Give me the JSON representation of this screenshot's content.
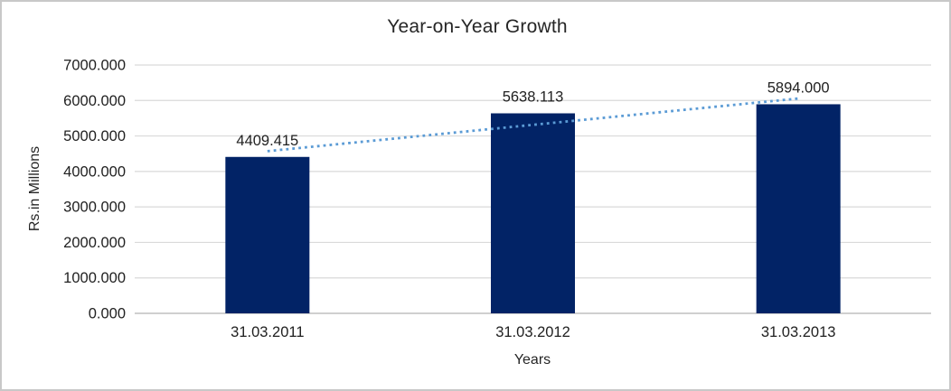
{
  "frame": {
    "background": "#FFFFFF",
    "border_color": "#C8C8C8"
  },
  "chart_data": {
    "type": "bar",
    "title": "Year-on-Year Growth",
    "xlabel": "Years",
    "ylabel": "Rs.in Millions",
    "categories": [
      "31.03.2011",
      "31.03.2012",
      "31.03.2013"
    ],
    "values": [
      4409.415,
      5638.113,
      5894.0
    ],
    "data_labels": [
      "4409.415",
      "5638.113",
      "5894.000"
    ],
    "ylim": [
      0,
      7000
    ],
    "ytick_step": 1000,
    "ytick_labels": [
      "0.000",
      "1000.000",
      "2000.000",
      "3000.000",
      "4000.000",
      "5000.000",
      "6000.000",
      "7000.000"
    ],
    "grid": true,
    "legend_position": "none",
    "bar_color": "#022366",
    "gridline_color": "#D9D9D9",
    "axis_line_color": "#BFBFBF",
    "text_color": "#212121",
    "trendline": {
      "type": "linear",
      "style": "dotted",
      "color": "#5B9BD5"
    }
  }
}
